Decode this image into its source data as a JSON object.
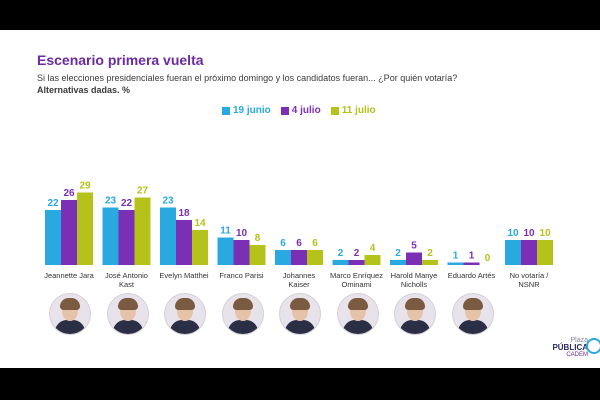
{
  "header": {
    "title": "Escenario primera vuelta",
    "subtitle": "Si las elecciones presidenciales fueran el próximo domingo y los candidatos fueran... ¿Por quién votaría?",
    "subtitle2": "Alternativas dadas. %"
  },
  "logo": {
    "line1": "Plaza",
    "line2": "PÚBLICA",
    "line3": "CADEM"
  },
  "colors": {
    "series1": "#29a9e0",
    "series2": "#7b2fb5",
    "series3": "#b5c21a",
    "label_text": "#333333"
  },
  "chart_data": {
    "type": "bar",
    "title": "Escenario primera vuelta",
    "ylim": [
      0,
      30
    ],
    "categories": [
      "Jeannette Jara",
      "José Antonio Kast",
      "Evelyn Matthei",
      "Franco Parisi",
      "Johannes Kaiser",
      "Marco Enríquez Ominami",
      "Harold Manye Nicholls",
      "Eduardo Artés",
      "No votaría / NSNR"
    ],
    "category_lines": [
      [
        "Jeannette Jara"
      ],
      [
        "José Antonio",
        "Kast"
      ],
      [
        "Evelyn Matthei"
      ],
      [
        "Franco Parisi"
      ],
      [
        "Johannes",
        "Kaiser"
      ],
      [
        "Marco Enríquez",
        "Ominami"
      ],
      [
        "Harold Manye",
        "Nicholls"
      ],
      [
        "Eduardo Artés"
      ],
      [
        "No votaría /",
        "NSNR"
      ]
    ],
    "series": [
      {
        "name": "19 junio",
        "values": [
          22,
          23,
          23,
          11,
          6,
          2,
          2,
          1,
          10
        ]
      },
      {
        "name": "4 julio",
        "values": [
          26,
          22,
          18,
          10,
          6,
          2,
          5,
          1,
          10
        ]
      },
      {
        "name": "11 julio",
        "values": [
          29,
          27,
          14,
          8,
          6,
          4,
          2,
          0,
          10
        ]
      }
    ],
    "legend": "top-center",
    "grid": false
  }
}
